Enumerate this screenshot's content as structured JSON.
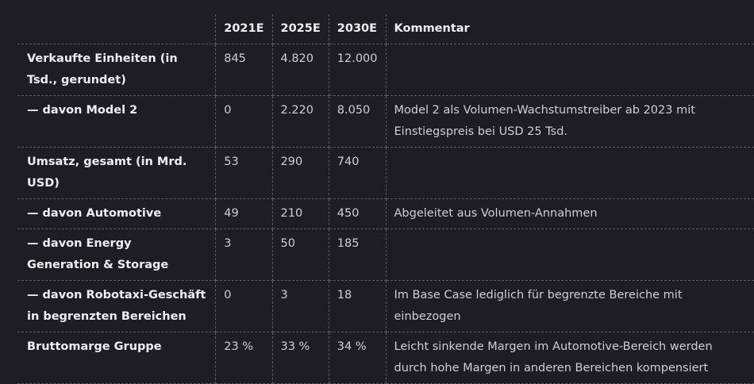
{
  "table": {
    "headers": [
      "",
      "2021E",
      "2025E",
      "2030E",
      "Kommentar"
    ],
    "rows": [
      {
        "label": "Verkaufte Einheiten (in Tsd., gerundet)",
        "v2021": "845",
        "v2025": "4.820",
        "v2030": "12.000",
        "comment": ""
      },
      {
        "label": "— davon Model 2",
        "v2021": "0",
        "v2025": "2.220",
        "v2030": "8.050",
        "comment": "Model 2 als Volumen-Wachstumstreiber ab 2023 mit Einstiegspreis bei USD 25 Tsd."
      },
      {
        "label": "Umsatz, gesamt (in Mrd. USD)",
        "v2021": "53",
        "v2025": "290",
        "v2030": "740",
        "comment": ""
      },
      {
        "label": "— davon Automotive",
        "v2021": "49",
        "v2025": "210",
        "v2030": "450",
        "comment": "Abgeleitet aus Volumen-Annahmen"
      },
      {
        "label": "— davon Energy Generation & Storage",
        "v2021": "3",
        "v2025": "50",
        "v2030": "185",
        "comment": ""
      },
      {
        "label": "— davon Robotaxi-Geschäft in begrenzten Bereichen",
        "v2021": "0",
        "v2025": "3",
        "v2030": "18",
        "comment": "Im Base Case lediglich für begrenzte Bereiche mit einbezogen"
      },
      {
        "label": "Bruttomarge Gruppe",
        "v2021": "23 %",
        "v2025": "33 %",
        "v2030": "34 %",
        "comment": "Leicht sinkende Margen im Automotive-Bereich werden durch hohe Margen in anderen Bereichen kompensiert"
      }
    ]
  }
}
